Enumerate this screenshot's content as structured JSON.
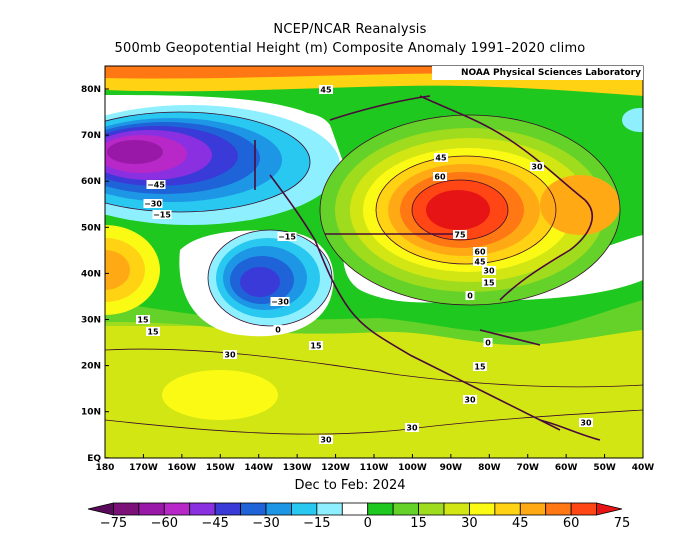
{
  "title_line1": "NCEP/NCAR Reanalysis",
  "title_line2": "500mb Geopotential Height (m) Composite Anomaly 1991–2020 climo",
  "lab_label": "NOAA Physical Sciences Laboratory",
  "period_label": "Dec to Feb: 2024",
  "lat_labels": [
    "80N",
    "70N",
    "60N",
    "50N",
    "40N",
    "30N",
    "20N",
    "10N",
    "EQ"
  ],
  "lon_labels": [
    "180",
    "170W",
    "160W",
    "150W",
    "140W",
    "130W",
    "120W",
    "110W",
    "100W",
    "90W",
    "80W",
    "70W",
    "60W",
    "50W",
    "40W"
  ],
  "colorbar": {
    "labels": [
      "−75",
      "−60",
      "−45",
      "−30",
      "−15",
      "0",
      "15",
      "30",
      "45",
      "60",
      "75"
    ],
    "colors": [
      "#5a0a5a",
      "#7a1078",
      "#9a18a8",
      "#b828c8",
      "#8a30e0",
      "#3a3ad8",
      "#1e64d8",
      "#1e96e6",
      "#28c8f0",
      "#8ef0ff",
      "#ffffff",
      "#1ec81e",
      "#64d228",
      "#a0dc1e",
      "#d2e614",
      "#fafa14",
      "#ffd214",
      "#ffaa14",
      "#ff7814",
      "#ff4614",
      "#e61414"
    ]
  },
  "contour_labels": [
    "45",
    "45",
    "60",
    "30",
    "75",
    "60",
    "45",
    "30",
    "15",
    "0",
    "−45",
    "−30",
    "−15",
    "−15",
    "−30",
    "0",
    "15",
    "15",
    "15",
    "30",
    "15",
    "0",
    "30",
    "30",
    "30",
    "30"
  ]
}
